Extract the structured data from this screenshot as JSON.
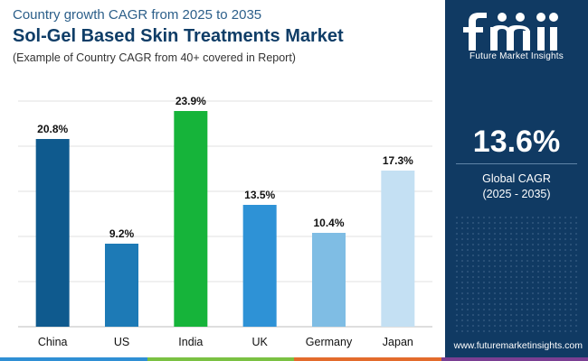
{
  "header": {
    "eyebrow": "Country growth CAGR from 2025 to 2035",
    "title": "Sol-Gel Based Skin Treatments Market",
    "subtitle": "(Example of Country CAGR from 40+ covered in Report)"
  },
  "chart_data": {
    "type": "bar",
    "categories": [
      "China",
      "US",
      "India",
      "UK",
      "Germany",
      "Japan"
    ],
    "values": [
      20.8,
      9.2,
      23.9,
      13.5,
      10.4,
      17.3
    ],
    "value_labels": [
      "20.8%",
      "9.2%",
      "23.9%",
      "13.5%",
      "10.4%",
      "17.3%"
    ],
    "bar_colors": [
      "#0f5a8e",
      "#1d7ab6",
      "#16b43a",
      "#2e92d6",
      "#7fbde4",
      "#c4e0f3"
    ],
    "ylim": [
      0,
      25
    ],
    "grid": true,
    "xlabel": "",
    "ylabel": ""
  },
  "side_panel": {
    "logo_text": "Future Market Insights",
    "kpi_value": "13.6%",
    "kpi_label": "Global CAGR",
    "kpi_period": "(2025 - 2035)",
    "website": "www.futuremarketinsights.com",
    "background_color": "#103a63"
  },
  "bottom_bar_colors": [
    "#2f8fd4",
    "#7ac142",
    "#e36b2c",
    "#7a3e92"
  ]
}
